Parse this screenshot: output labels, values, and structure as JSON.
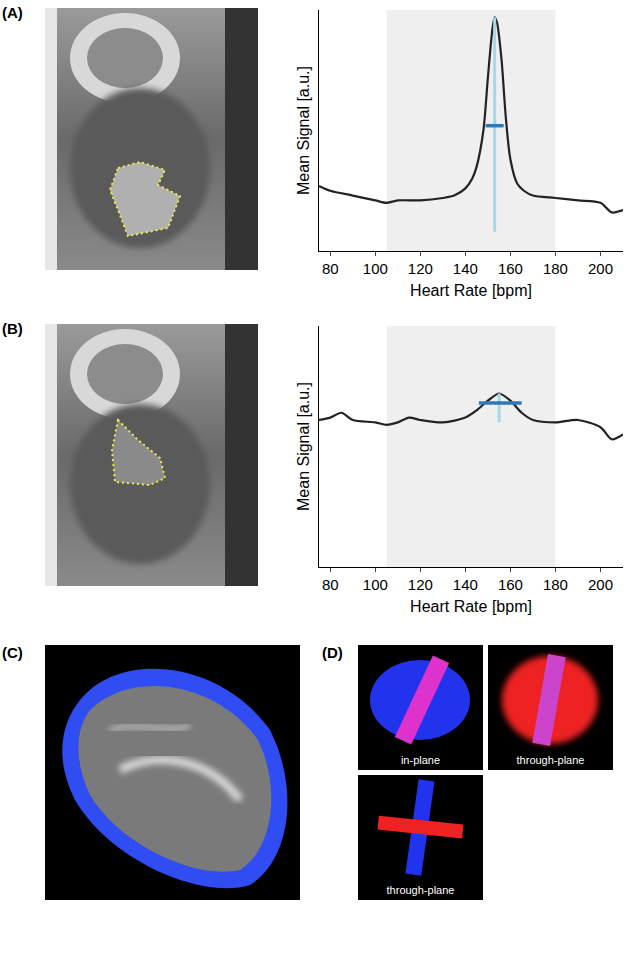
{
  "chart_data": [
    {
      "type": "line",
      "panel": "(A)",
      "x": [
        75,
        80,
        90,
        100,
        105,
        110,
        120,
        130,
        135,
        140,
        143,
        145,
        148,
        150,
        152,
        153,
        154,
        156,
        158,
        160,
        163,
        166,
        170,
        180,
        190,
        200,
        205,
        210
      ],
      "values": [
        0.27,
        0.25,
        0.23,
        0.21,
        0.2,
        0.21,
        0.21,
        0.22,
        0.23,
        0.26,
        0.3,
        0.35,
        0.5,
        0.72,
        0.92,
        0.97,
        0.95,
        0.8,
        0.55,
        0.38,
        0.28,
        0.25,
        0.23,
        0.22,
        0.21,
        0.2,
        0.16,
        0.17
      ],
      "color": "#222222",
      "x_label": "Heart Rate [bpm]",
      "y_label": "Mean Signal [a.u.]",
      "xlim": [
        75,
        210
      ],
      "xticks": [
        80,
        100,
        120,
        140,
        160,
        180,
        200
      ],
      "ylim": [
        0,
        1
      ],
      "yticks": [],
      "tick_labels": "x",
      "highlight_range": [
        105,
        180
      ],
      "peak_marker": {
        "x": 153,
        "y": [
          0.08,
          0.97
        ],
        "color": "#a6d8e8"
      },
      "width_marker": {
        "x": [
          149,
          157
        ],
        "y": 0.52,
        "color": "#2c7bb6"
      }
    },
    {
      "type": "line",
      "panel": "(B)",
      "x": [
        75,
        80,
        85,
        90,
        100,
        105,
        110,
        115,
        120,
        130,
        140,
        145,
        150,
        155,
        160,
        165,
        170,
        180,
        190,
        200,
        205,
        210
      ],
      "values": [
        0.61,
        0.62,
        0.64,
        0.61,
        0.6,
        0.59,
        0.6,
        0.62,
        0.61,
        0.6,
        0.62,
        0.65,
        0.69,
        0.72,
        0.69,
        0.64,
        0.61,
        0.6,
        0.61,
        0.58,
        0.53,
        0.55
      ],
      "color": "#222222",
      "x_label": "Heart Rate [bpm]",
      "y_label": "Mean Signal [a.u.]",
      "xlim": [
        75,
        210
      ],
      "xticks": [
        80,
        100,
        120,
        140,
        160,
        180,
        200
      ],
      "ylim": [
        0,
        1
      ],
      "yticks": [],
      "tick_labels": "x",
      "highlight_range": [
        105,
        180
      ],
      "peak_marker": {
        "x": 155,
        "y": [
          0.6,
          0.72
        ],
        "color": "#a6d8e8"
      },
      "width_marker": {
        "x": [
          146,
          165
        ],
        "y": 0.68,
        "color": "#2c7bb6"
      }
    }
  ],
  "panels": {
    "image_labels": [
      "(C)",
      "(D)"
    ],
    "d_views": [
      "in-plane",
      "through-plane",
      "through-plane"
    ]
  }
}
